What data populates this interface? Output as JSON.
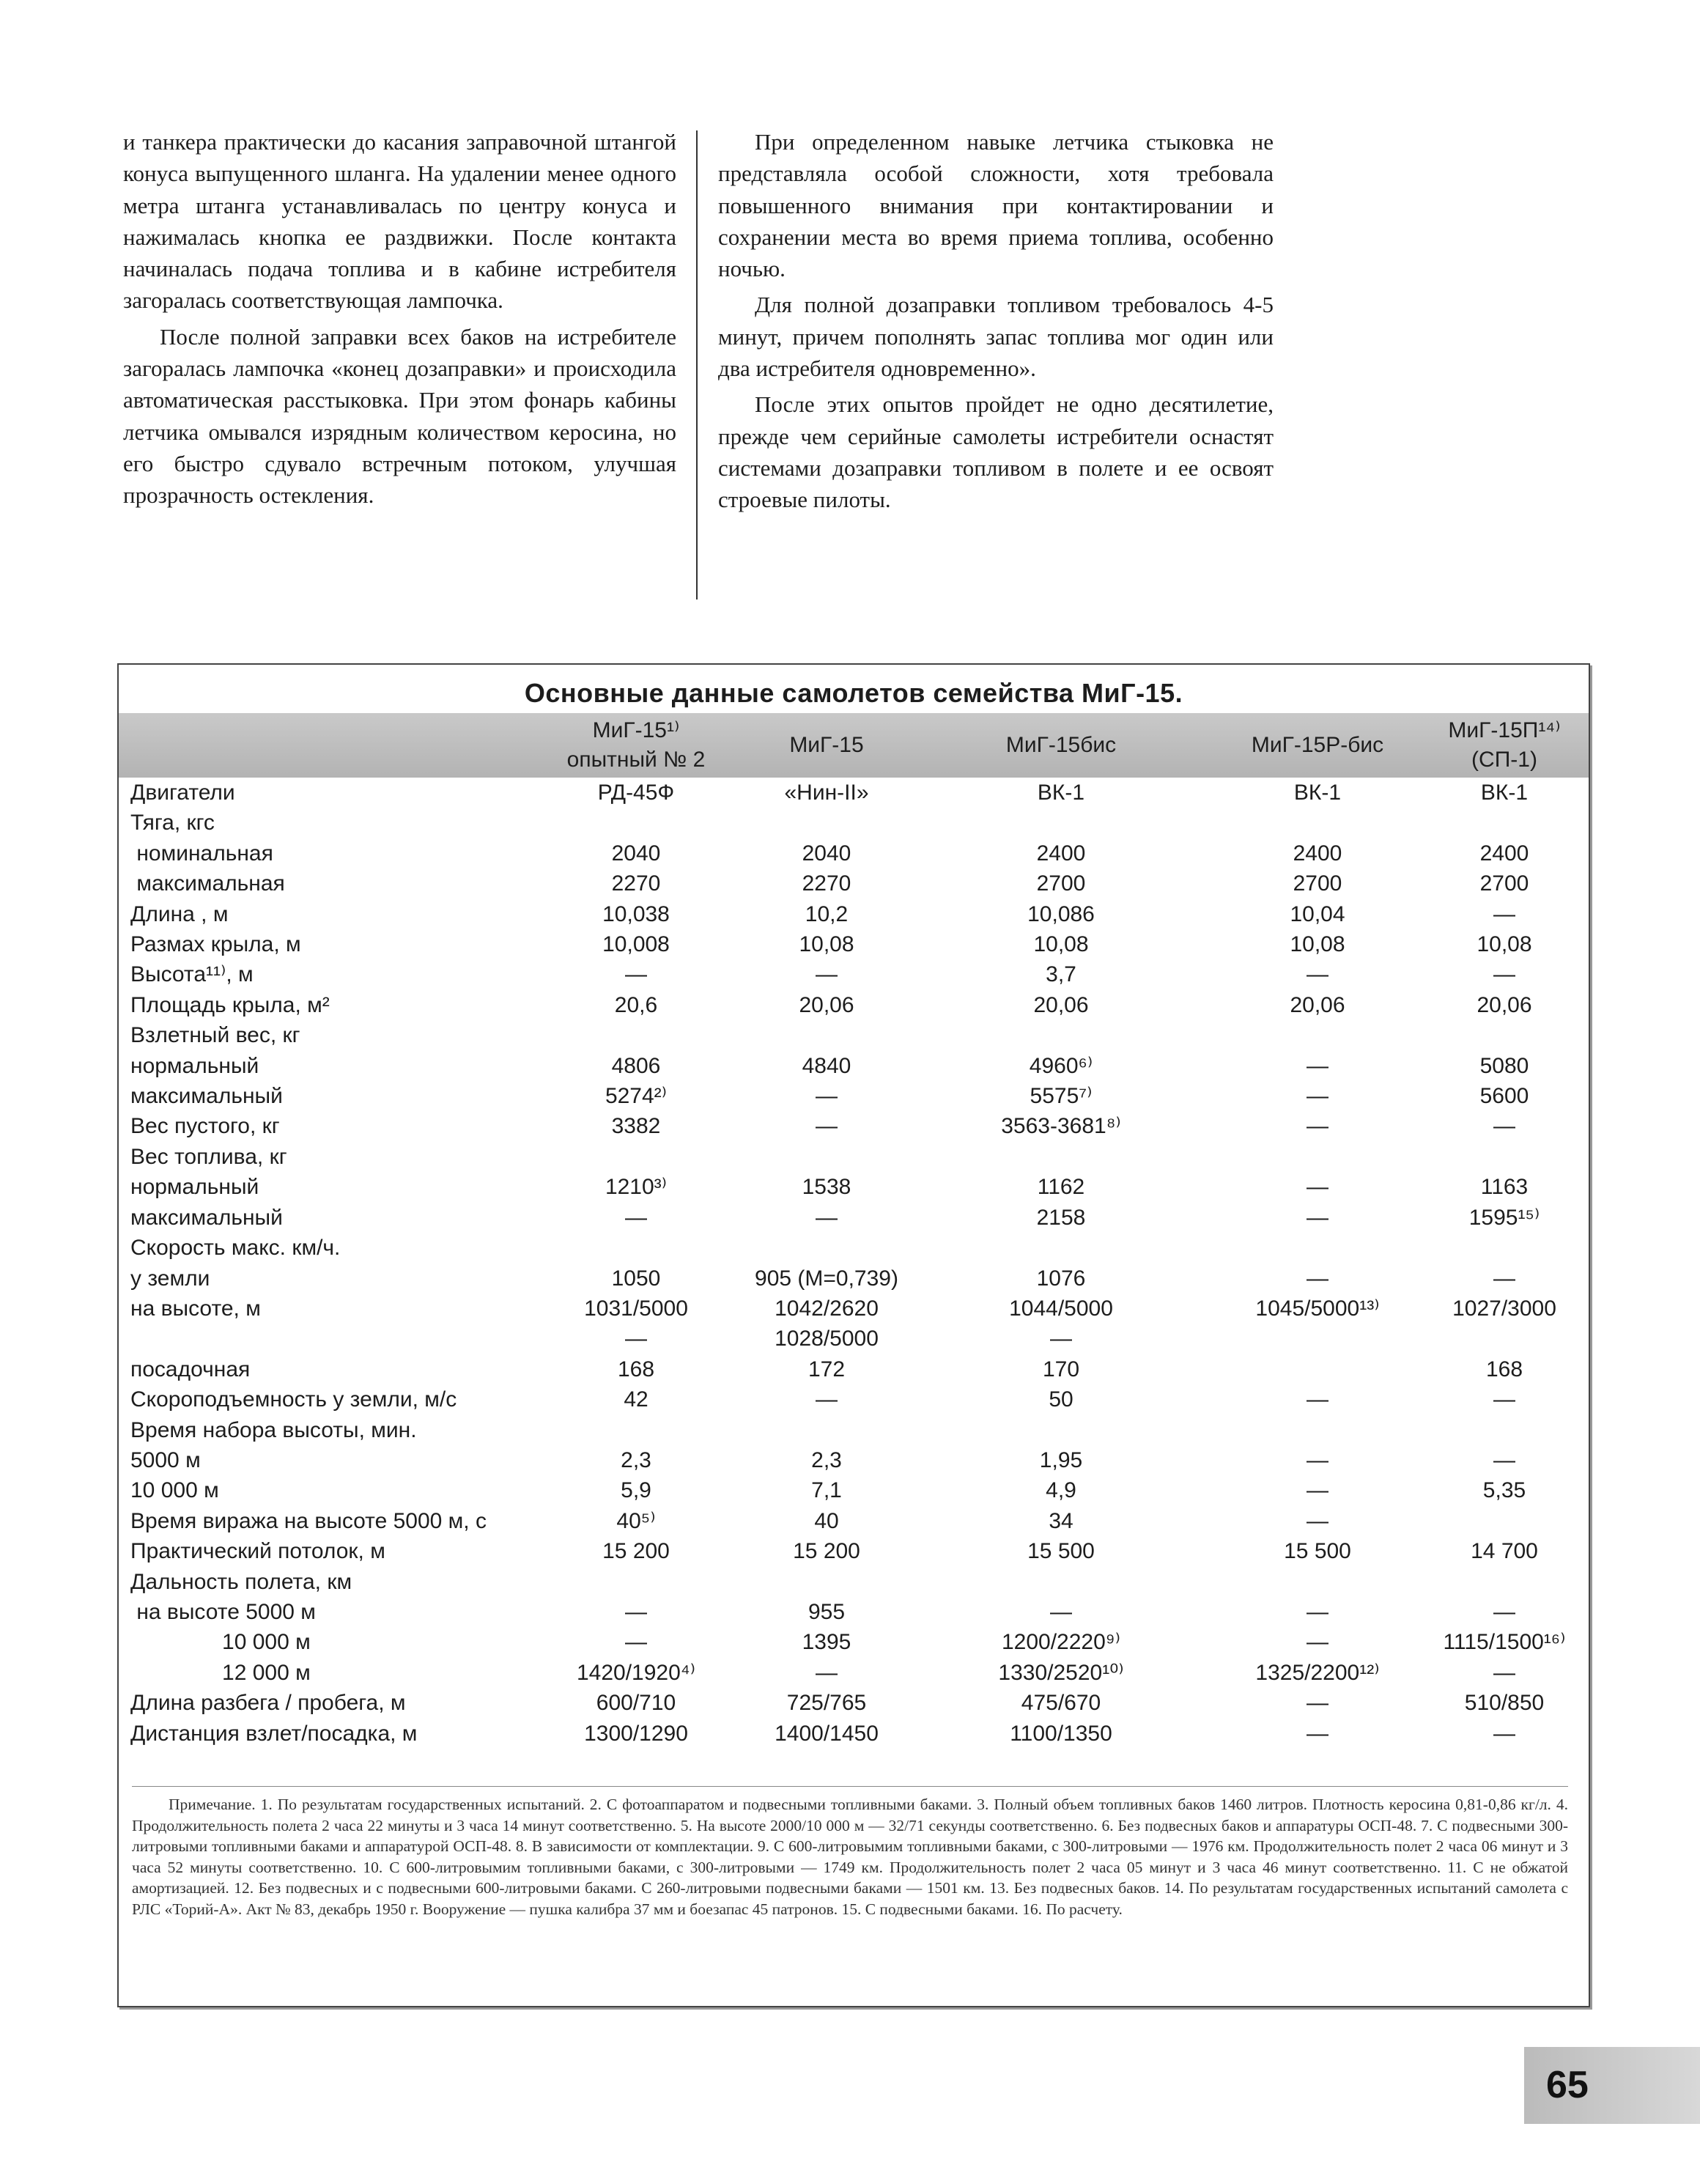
{
  "left_column": [
    "и танкера практически до касания заправочной штангой конуса выпущенного шланга. На удалении менее одного метра штанга устанавливалась по центру конуса и нажималась кнопка ее раздвижки. После контакта начиналась подача топлива и в кабине истребителя загоралась соответствующая лампочка.",
    "После полной заправки всех баков на истребителе загоралась лампочка «конец дозаправки» и происходила автоматическая расстыковка. При этом фонарь кабины летчика омывался изрядным количеством керосина, но его быстро сдувало встречным потоком, улучшая прозрачность остекления."
  ],
  "right_column": [
    "При определенном навыке летчика стыковка не представляла особой сложности, хотя требовала повышенного внимания при контактировании и сохранении места во время приема топлива, особенно ночью.",
    "Для полной дозаправки топливом требовалось 4-5 минут, причем пополнять запас топлива мог один или два истребителя одновременно».",
    "После этих опытов пройдет не одно десятилетие, прежде чем серийные самолеты истребители оснастят системами дозаправки топливом в полете и ее освоят строевые пилоты."
  ],
  "table": {
    "title": "Основные данные самолетов семейства МиГ-15.",
    "header": [
      "МиГ-15¹⁾\nопытный № 2",
      "МиГ-15",
      "МиГ-15бис",
      "МиГ-15Р-бис",
      "МиГ-15П¹⁴⁾\n(СП-1)"
    ],
    "rows": [
      [
        "Двигатели",
        "РД-45Ф",
        "«Нин-II»",
        "ВК-1",
        "ВК-1",
        "ВК-1"
      ],
      [
        "Тяга, кгс",
        null,
        null,
        null,
        null,
        null
      ],
      [
        " номинальная",
        "2040",
        "2040",
        "2400",
        "2400",
        "2400"
      ],
      [
        " максимальная",
        "2270",
        "2270",
        "2700",
        "2700",
        "2700"
      ],
      [
        "Длина , м",
        "10,038",
        "10,2",
        "10,086",
        "10,04",
        "—"
      ],
      [
        "Размах крыла, м",
        "10,008",
        "10,08",
        "10,08",
        "10,08",
        "10,08"
      ],
      [
        "Высота¹¹⁾, м",
        "—",
        "—",
        "3,7",
        "—",
        "—"
      ],
      [
        "Площадь крыла, м²",
        "20,6",
        "20,06",
        "20,06",
        "20,06",
        "20,06"
      ],
      [
        "Взлетный вес, кг",
        null,
        null,
        null,
        null,
        null
      ],
      [
        "нормальный",
        "4806",
        "4840",
        "4960⁶⁾",
        "—",
        "5080"
      ],
      [
        "максимальный",
        "5274²⁾",
        "—",
        "5575⁷⁾",
        "—",
        "5600"
      ],
      [
        "Вес пустого, кг",
        "3382",
        "—",
        "3563-3681⁸⁾",
        "—",
        "—"
      ],
      [
        "Вес топлива, кг",
        null,
        null,
        null,
        null,
        null
      ],
      [
        "нормальный",
        "1210³⁾",
        "1538",
        "1162",
        "—",
        "1163"
      ],
      [
        "максимальный",
        "—",
        "—",
        "2158",
        "—",
        "1595¹⁵⁾"
      ],
      [
        "Скорость макс. км/ч.",
        null,
        null,
        null,
        null,
        null
      ],
      [
        "у земли",
        "1050",
        "905 (М=0,739)",
        "1076",
        "—",
        "—"
      ],
      [
        "на высоте, м",
        "1031/5000",
        "1042/2620",
        "1044/5000",
        "1045/5000¹³⁾",
        "1027/3000"
      ],
      [
        null,
        "—",
        "1028/5000",
        "—",
        null,
        null
      ],
      [
        "посадочная",
        "168",
        "172",
        "170",
        null,
        "168"
      ],
      [
        "Скороподъемность у земли, м/с",
        "42",
        "—",
        "50",
        "—",
        "—"
      ],
      [
        "Время набора высоты, мин.",
        null,
        null,
        null,
        null,
        null
      ],
      [
        "5000 м",
        "2,3",
        "2,3",
        "1,95",
        "—",
        "—"
      ],
      [
        "10 000 м",
        "5,9",
        "7,1",
        "4,9",
        "—",
        "5,35"
      ],
      [
        "Время виража на высоте 5000 м, с",
        "40⁵⁾",
        "40",
        "34",
        "—",
        null
      ],
      [
        "Практический потолок, м",
        "15 200",
        "15 200",
        "15 500",
        "15 500",
        "14 700"
      ],
      [
        "Дальность полета, км",
        null,
        null,
        null,
        null,
        null
      ],
      [
        " на высоте 5000 м",
        "—",
        "955",
        "—",
        "—",
        "—"
      ],
      [
        "               10 000 м",
        "—",
        "1395",
        "1200/2220⁹⁾",
        "—",
        "1115/1500¹⁶⁾"
      ],
      [
        "               12 000 м",
        "1420/1920⁴⁾",
        "—",
        "1330/2520¹⁰⁾",
        "1325/2200¹²⁾",
        "—"
      ],
      [
        "Длина разбега / пробега, м",
        "600/710",
        "725/765",
        "475/670",
        "—",
        "510/850"
      ],
      [
        "Дистанция взлет/посадка, м",
        "1300/1290",
        "1400/1450",
        "1100/1350",
        "—",
        "—"
      ]
    ],
    "note": "Примечание. 1. По результатам государственных испытаний. 2. С фотоаппаратом и подвесными топливными баками. 3. Полный объем топливных баков 1460 литров. Плотность керосина 0,81-0,86 кг/л. 4. Продолжительность полета 2 часа 22 минуты и 3 часа 14 минут соответственно. 5. На высоте 2000/10 000 м — 32/71 секунды соответственно. 6. Без подвесных баков и аппаратуры ОСП-48. 7. С подвесными 300-литровыми топливными баками и аппаратурой ОСП-48. 8. В зависимости от комплектации. 9. С 600-литровымим топливными баками, с 300-литровыми — 1976 км. Продолжительность полет 2 часа 06 минут и 3 часа 52 минуты соответственно. 10. С 600-литровымим топливными баками, с 300-литровыми — 1749 км. Продолжительность полет 2 часа 05 минут и 3 часа 46 минут соответственно. 11. С не обжатой амортизацией. 12. Без подвесных и с подвесными 600-литровыми баками. С 260-литровыми подвесными баками — 1501 км. 13. Без подвесных баков. 14. По результатам государственных испытаний самолета с РЛС «Торий-А». Акт № 83, декабрь 1950 г. Вооружение — пушка калибра 37 мм и боезапас 45 патронов. 15. С подвесными баками. 16. По расчету."
  },
  "page_number": "65"
}
